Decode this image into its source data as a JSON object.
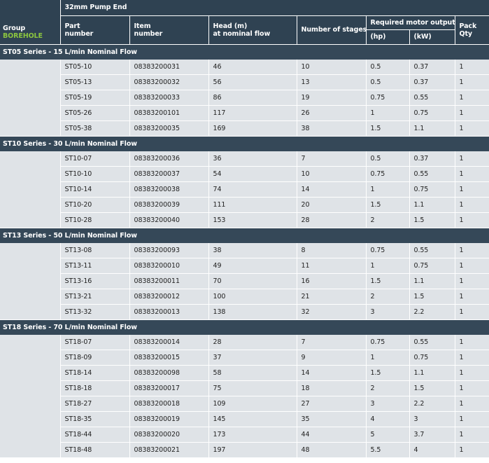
{
  "header": {
    "pump_end": "32mm Pump End",
    "group_label": "Group",
    "group_value": "BOREHOLE",
    "col_part": [
      "Part",
      "number"
    ],
    "col_item": [
      "Item",
      "number"
    ],
    "col_head": [
      "Head (m)",
      "at nominal flow"
    ],
    "col_stages": "Number of stages",
    "col_motor": "Required motor output",
    "col_hp": "(hp)",
    "col_kw": "(kW)",
    "col_pack": [
      "Pack",
      "Qty"
    ]
  },
  "sections": [
    {
      "title": "ST05 Series - 15 L/min Nominal Flow",
      "rows": [
        [
          "ST05-10",
          "08383200031",
          "46",
          "10",
          "0.5",
          "0.37",
          "1"
        ],
        [
          "ST05-13",
          "08383200032",
          "56",
          "13",
          "0.5",
          "0.37",
          "1"
        ],
        [
          "ST05-19",
          "08383200033",
          "86",
          "19",
          "0.75",
          "0.55",
          "1"
        ],
        [
          "ST05-26",
          "08383200101",
          "117",
          "26",
          "1",
          "0.75",
          "1"
        ],
        [
          "ST05-38",
          "08383200035",
          "169",
          "38",
          "1.5",
          "1.1",
          "1"
        ]
      ]
    },
    {
      "title": "ST10 Series - 30 L/min Nominal Flow",
      "rows": [
        [
          "ST10-07",
          "08383200036",
          "36",
          "7",
          "0.5",
          "0.37",
          "1"
        ],
        [
          "ST10-10",
          "08383200037",
          "54",
          "10",
          "0.75",
          "0.55",
          "1"
        ],
        [
          "ST10-14",
          "08383200038",
          "74",
          "14",
          "1",
          "0.75",
          "1"
        ],
        [
          "ST10-20",
          "08383200039",
          "111",
          "20",
          "1.5",
          "1.1",
          "1"
        ],
        [
          "ST10-28",
          "08383200040",
          "153",
          "28",
          "2",
          "1.5",
          "1"
        ]
      ]
    },
    {
      "title": "ST13 Series - 50 L/min Nominal Flow",
      "rows": [
        [
          "ST13-08",
          "08383200093",
          "38",
          "8",
          "0.75",
          "0.55",
          "1"
        ],
        [
          "ST13-11",
          "08383200010",
          "49",
          "11",
          "1",
          "0.75",
          "1"
        ],
        [
          "ST13-16",
          "08383200011",
          "70",
          "16",
          "1.5",
          "1.1",
          "1"
        ],
        [
          "ST13-21",
          "08383200012",
          "100",
          "21",
          "2",
          "1.5",
          "1"
        ],
        [
          "ST13-32",
          "08383200013",
          "138",
          "32",
          "3",
          "2.2",
          "1"
        ]
      ]
    },
    {
      "title": "ST18 Series - 70 L/min Nominal Flow",
      "rows": [
        [
          "ST18-07",
          "08383200014",
          "28",
          "7",
          "0.75",
          "0.55",
          "1"
        ],
        [
          "ST18-09",
          "08383200015",
          "37",
          "9",
          "1",
          "0.75",
          "1"
        ],
        [
          "ST18-14",
          "08383200098",
          "58",
          "14",
          "1.5",
          "1.1",
          "1"
        ],
        [
          "ST18-18",
          "08383200017",
          "75",
          "18",
          "2",
          "1.5",
          "1"
        ],
        [
          "ST18-27",
          "08383200018",
          "109",
          "27",
          "3",
          "2.2",
          "1"
        ],
        [
          "ST18-35",
          "08383200019",
          "145",
          "35",
          "4",
          "3",
          "1"
        ],
        [
          "ST18-44",
          "08383200020",
          "173",
          "44",
          "5",
          "3.7",
          "1"
        ],
        [
          "ST18-48",
          "08383200021",
          "197",
          "48",
          "5.5",
          "4",
          "1"
        ]
      ]
    }
  ]
}
